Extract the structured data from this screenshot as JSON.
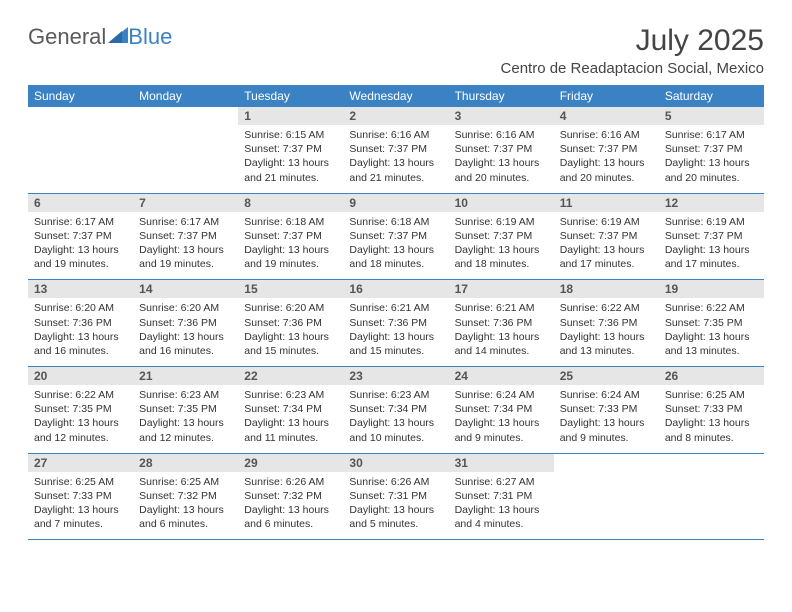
{
  "logo": {
    "text1": "General",
    "text2": "Blue"
  },
  "title": "July 2025",
  "location": "Centro de Readaptacion Social, Mexico",
  "colors": {
    "header_bg": "#3b82c4",
    "header_text": "#ffffff",
    "daynum_bg": "#e6e6e6",
    "daynum_text": "#555555",
    "body_text": "#333333",
    "rule": "#3b82c4",
    "logo_gray": "#5a5a5a",
    "logo_blue": "#3b82c4"
  },
  "day_headers": [
    "Sunday",
    "Monday",
    "Tuesday",
    "Wednesday",
    "Thursday",
    "Friday",
    "Saturday"
  ],
  "weeks": [
    [
      null,
      null,
      {
        "n": "1",
        "r": "6:15 AM",
        "s": "7:37 PM",
        "d": "13 hours and 21 minutes."
      },
      {
        "n": "2",
        "r": "6:16 AM",
        "s": "7:37 PM",
        "d": "13 hours and 21 minutes."
      },
      {
        "n": "3",
        "r": "6:16 AM",
        "s": "7:37 PM",
        "d": "13 hours and 20 minutes."
      },
      {
        "n": "4",
        "r": "6:16 AM",
        "s": "7:37 PM",
        "d": "13 hours and 20 minutes."
      },
      {
        "n": "5",
        "r": "6:17 AM",
        "s": "7:37 PM",
        "d": "13 hours and 20 minutes."
      }
    ],
    [
      {
        "n": "6",
        "r": "6:17 AM",
        "s": "7:37 PM",
        "d": "13 hours and 19 minutes."
      },
      {
        "n": "7",
        "r": "6:17 AM",
        "s": "7:37 PM",
        "d": "13 hours and 19 minutes."
      },
      {
        "n": "8",
        "r": "6:18 AM",
        "s": "7:37 PM",
        "d": "13 hours and 19 minutes."
      },
      {
        "n": "9",
        "r": "6:18 AM",
        "s": "7:37 PM",
        "d": "13 hours and 18 minutes."
      },
      {
        "n": "10",
        "r": "6:19 AM",
        "s": "7:37 PM",
        "d": "13 hours and 18 minutes."
      },
      {
        "n": "11",
        "r": "6:19 AM",
        "s": "7:37 PM",
        "d": "13 hours and 17 minutes."
      },
      {
        "n": "12",
        "r": "6:19 AM",
        "s": "7:37 PM",
        "d": "13 hours and 17 minutes."
      }
    ],
    [
      {
        "n": "13",
        "r": "6:20 AM",
        "s": "7:36 PM",
        "d": "13 hours and 16 minutes."
      },
      {
        "n": "14",
        "r": "6:20 AM",
        "s": "7:36 PM",
        "d": "13 hours and 16 minutes."
      },
      {
        "n": "15",
        "r": "6:20 AM",
        "s": "7:36 PM",
        "d": "13 hours and 15 minutes."
      },
      {
        "n": "16",
        "r": "6:21 AM",
        "s": "7:36 PM",
        "d": "13 hours and 15 minutes."
      },
      {
        "n": "17",
        "r": "6:21 AM",
        "s": "7:36 PM",
        "d": "13 hours and 14 minutes."
      },
      {
        "n": "18",
        "r": "6:22 AM",
        "s": "7:36 PM",
        "d": "13 hours and 13 minutes."
      },
      {
        "n": "19",
        "r": "6:22 AM",
        "s": "7:35 PM",
        "d": "13 hours and 13 minutes."
      }
    ],
    [
      {
        "n": "20",
        "r": "6:22 AM",
        "s": "7:35 PM",
        "d": "13 hours and 12 minutes."
      },
      {
        "n": "21",
        "r": "6:23 AM",
        "s": "7:35 PM",
        "d": "13 hours and 12 minutes."
      },
      {
        "n": "22",
        "r": "6:23 AM",
        "s": "7:34 PM",
        "d": "13 hours and 11 minutes."
      },
      {
        "n": "23",
        "r": "6:23 AM",
        "s": "7:34 PM",
        "d": "13 hours and 10 minutes."
      },
      {
        "n": "24",
        "r": "6:24 AM",
        "s": "7:34 PM",
        "d": "13 hours and 9 minutes."
      },
      {
        "n": "25",
        "r": "6:24 AM",
        "s": "7:33 PM",
        "d": "13 hours and 9 minutes."
      },
      {
        "n": "26",
        "r": "6:25 AM",
        "s": "7:33 PM",
        "d": "13 hours and 8 minutes."
      }
    ],
    [
      {
        "n": "27",
        "r": "6:25 AM",
        "s": "7:33 PM",
        "d": "13 hours and 7 minutes."
      },
      {
        "n": "28",
        "r": "6:25 AM",
        "s": "7:32 PM",
        "d": "13 hours and 6 minutes."
      },
      {
        "n": "29",
        "r": "6:26 AM",
        "s": "7:32 PM",
        "d": "13 hours and 6 minutes."
      },
      {
        "n": "30",
        "r": "6:26 AM",
        "s": "7:31 PM",
        "d": "13 hours and 5 minutes."
      },
      {
        "n": "31",
        "r": "6:27 AM",
        "s": "7:31 PM",
        "d": "13 hours and 4 minutes."
      },
      null,
      null
    ]
  ],
  "labels": {
    "sunrise": "Sunrise:",
    "sunset": "Sunset:",
    "daylight": "Daylight:"
  }
}
